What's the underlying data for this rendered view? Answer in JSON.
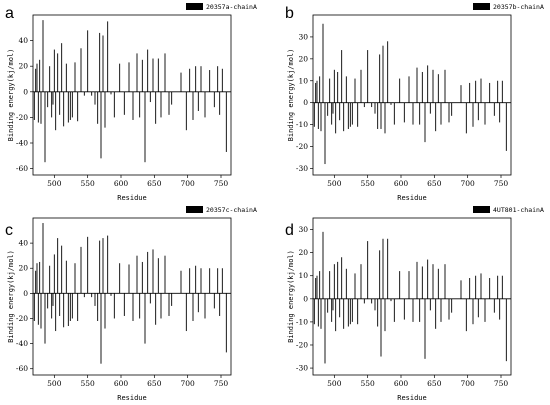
{
  "chart_data": [
    {
      "type": "bar",
      "panel_label": "a",
      "legend": [
        "20357a-chainA"
      ],
      "legend_position": "top-right",
      "xlabel": "Residue",
      "ylabel": "Binding energy(kj/mol)",
      "xlim": [
        468,
        765
      ],
      "ylim": [
        -65,
        60
      ],
      "xticks": [
        500,
        550,
        600,
        650,
        700,
        750
      ],
      "yticks": [
        -60,
        -40,
        -20,
        0,
        20,
        40
      ],
      "grid": false,
      "series": [
        {
          "x": [
            470,
            472,
            474,
            476,
            478,
            480,
            483,
            486,
            490,
            493,
            496,
            498,
            500,
            502,
            505,
            508,
            511,
            514,
            518,
            521,
            524,
            527,
            531,
            535,
            540,
            545,
            550,
            556,
            561,
            565,
            568,
            570,
            573,
            576,
            580,
            585,
            590,
            598,
            605,
            612,
            618,
            624,
            628,
            632,
            636,
            640,
            644,
            648,
            652,
            656,
            660,
            666,
            672,
            676,
            690,
            698,
            703,
            708,
            712,
            716,
            720,
            726,
            733,
            740,
            745,
            748,
            752,
            758
          ],
          "values": [
            -22,
            18,
            22,
            -24,
            25,
            -25,
            56,
            -55,
            -12,
            20,
            -20,
            -10,
            33,
            -30,
            30,
            -18,
            38,
            -27,
            22,
            -24,
            -22,
            -20,
            23,
            -23,
            34,
            -3,
            48,
            -3,
            -10,
            -25,
            46,
            -52,
            44,
            -28,
            55,
            -2,
            -20,
            22,
            -18,
            23,
            -22,
            30,
            -20,
            25,
            -55,
            33,
            -8,
            26,
            -25,
            26,
            -20,
            30,
            -18,
            -10,
            15,
            -30,
            18,
            -22,
            20,
            -15,
            20,
            -20,
            17,
            -12,
            20,
            -18,
            18,
            -47
          ]
        }
      ]
    },
    {
      "type": "bar",
      "panel_label": "b",
      "legend": [
        "20357b-chainA"
      ],
      "legend_position": "top-right",
      "xlabel": "Residue",
      "ylabel": "Binding energy(kj/mol)",
      "xlim": [
        468,
        765
      ],
      "ylim": [
        -33,
        40
      ],
      "xticks": [
        500,
        550,
        600,
        650,
        700,
        750
      ],
      "yticks": [
        -30,
        -20,
        -10,
        0,
        10,
        20,
        30
      ],
      "grid": false,
      "series": [
        {
          "x": [
            470,
            472,
            474,
            476,
            478,
            480,
            483,
            486,
            490,
            493,
            496,
            498,
            500,
            502,
            505,
            508,
            511,
            514,
            518,
            521,
            524,
            527,
            531,
            535,
            540,
            545,
            550,
            556,
            561,
            565,
            568,
            570,
            573,
            576,
            580,
            585,
            590,
            598,
            605,
            612,
            618,
            624,
            628,
            632,
            636,
            640,
            644,
            648,
            652,
            656,
            660,
            666,
            672,
            676,
            690,
            698,
            703,
            708,
            712,
            716,
            720,
            726,
            733,
            740,
            745,
            748,
            752,
            758
          ],
          "values": [
            -11,
            9,
            10,
            -12,
            12,
            -13,
            36,
            -28,
            -6,
            11,
            -10,
            -5,
            15,
            -14,
            14,
            -8,
            24,
            -13,
            12,
            -12,
            -11,
            -10,
            11,
            -11,
            15,
            -2,
            24,
            -2,
            -5,
            -12,
            22,
            -12,
            26,
            -14,
            28,
            -1,
            -10,
            11,
            -9,
            12,
            -10,
            16,
            -10,
            14,
            -18,
            17,
            -5,
            15,
            -13,
            13,
            -10,
            15,
            -9,
            -6,
            8,
            -14,
            9,
            -11,
            10,
            -8,
            11,
            -10,
            9,
            -6,
            10,
            -9,
            10,
            -22
          ]
        }
      ]
    },
    {
      "type": "bar",
      "panel_label": "c",
      "legend": [
        "20357c-chainA"
      ],
      "legend_position": "top-right",
      "xlabel": "Residue",
      "ylabel": "Binding energy(kj/mol)",
      "xlim": [
        468,
        765
      ],
      "ylim": [
        -65,
        60
      ],
      "xticks": [
        500,
        550,
        600,
        650,
        700,
        750
      ],
      "yticks": [
        -60,
        -40,
        -20,
        0,
        20,
        40
      ],
      "grid": false,
      "series": [
        {
          "x": [
            470,
            472,
            474,
            476,
            478,
            480,
            483,
            486,
            490,
            493,
            496,
            498,
            500,
            502,
            505,
            508,
            511,
            514,
            518,
            521,
            524,
            527,
            531,
            535,
            540,
            545,
            550,
            556,
            561,
            565,
            568,
            570,
            573,
            576,
            580,
            585,
            590,
            598,
            605,
            612,
            618,
            624,
            628,
            632,
            636,
            640,
            644,
            648,
            652,
            656,
            660,
            666,
            672,
            676,
            690,
            698,
            703,
            708,
            712,
            716,
            720,
            726,
            733,
            740,
            745,
            748,
            752,
            758
          ],
          "values": [
            -22,
            18,
            24,
            -25,
            25,
            -28,
            56,
            -40,
            -12,
            22,
            -20,
            -10,
            31,
            -30,
            44,
            -18,
            38,
            -27,
            26,
            -26,
            -22,
            -20,
            24,
            -22,
            37,
            -3,
            45,
            -3,
            -10,
            -22,
            42,
            -56,
            44,
            -28,
            46,
            -2,
            -20,
            24,
            -18,
            23,
            -22,
            30,
            -20,
            25,
            -40,
            33,
            -8,
            35,
            -25,
            28,
            -20,
            30,
            -18,
            -10,
            18,
            -30,
            20,
            -22,
            22,
            -15,
            20,
            -20,
            20,
            -12,
            20,
            -18,
            20,
            -47
          ]
        }
      ]
    },
    {
      "type": "bar",
      "panel_label": "d",
      "legend": [
        "4UT801-chainA"
      ],
      "legend_position": "top-right",
      "xlabel": "Residue",
      "ylabel": "Binding energy(kj/mol)",
      "xlim": [
        468,
        765
      ],
      "ylim": [
        -33,
        35
      ],
      "xticks": [
        500,
        550,
        600,
        650,
        700,
        750
      ],
      "yticks": [
        -30,
        -20,
        -10,
        0,
        10,
        20,
        30
      ],
      "grid": false,
      "series": [
        {
          "x": [
            470,
            472,
            474,
            476,
            478,
            480,
            483,
            486,
            490,
            493,
            496,
            498,
            500,
            502,
            505,
            508,
            511,
            514,
            518,
            521,
            524,
            527,
            531,
            535,
            540,
            545,
            550,
            556,
            561,
            565,
            568,
            570,
            573,
            576,
            580,
            585,
            590,
            598,
            605,
            612,
            618,
            624,
            628,
            632,
            636,
            640,
            644,
            648,
            652,
            656,
            660,
            666,
            672,
            676,
            690,
            698,
            703,
            708,
            712,
            716,
            720,
            726,
            733,
            740,
            745,
            748,
            752,
            758
          ],
          "values": [
            -11,
            9,
            10,
            -12,
            12,
            -13,
            29,
            -28,
            -6,
            12,
            -10,
            -5,
            15,
            -14,
            16,
            -8,
            18,
            -13,
            13,
            -12,
            -11,
            -10,
            11,
            -11,
            15,
            -2,
            25,
            -2,
            -5,
            -12,
            21,
            -25,
            26,
            -14,
            26,
            -1,
            -10,
            12,
            -9,
            12,
            -10,
            16,
            -10,
            14,
            -26,
            17,
            -5,
            15,
            -13,
            13,
            -10,
            15,
            -9,
            -6,
            8,
            -14,
            9,
            -11,
            10,
            -8,
            11,
            -10,
            9,
            -6,
            10,
            -9,
            10,
            -27
          ]
        }
      ]
    }
  ]
}
